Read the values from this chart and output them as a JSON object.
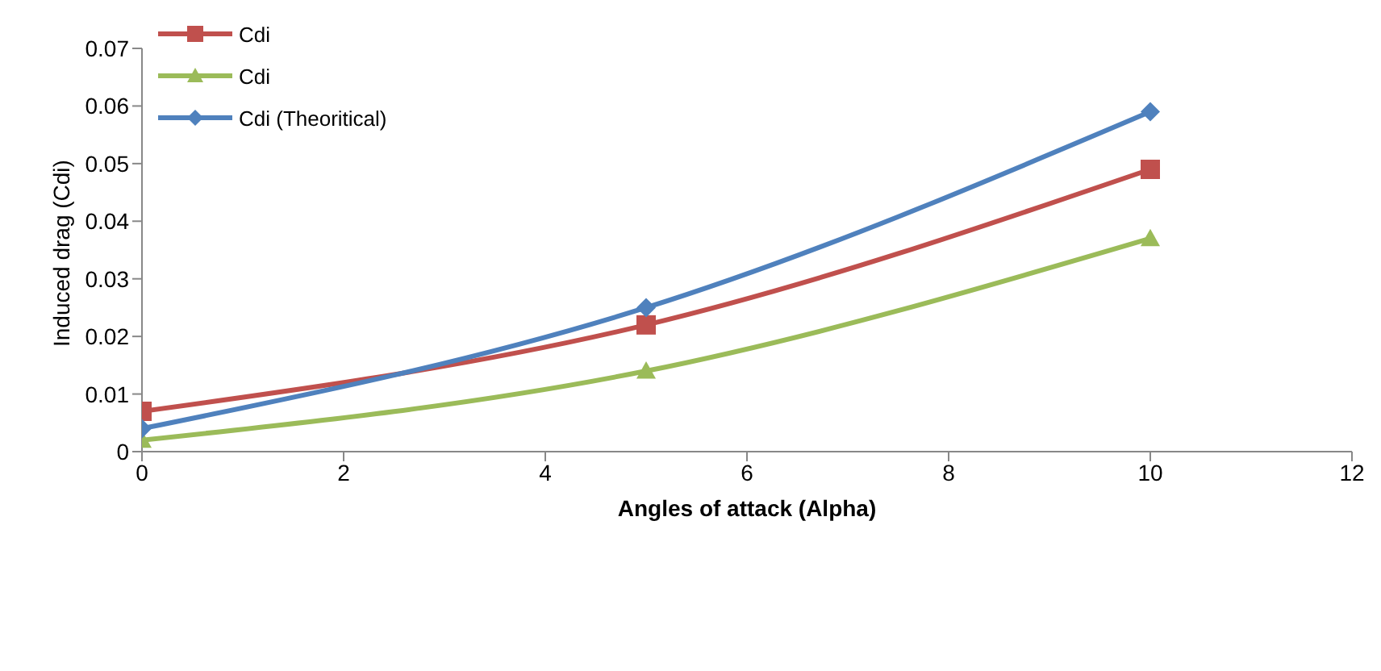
{
  "chart_data": {
    "type": "line",
    "xlabel": "Angles of attack (Alpha)",
    "ylabel": "Induced drag (Cdi)",
    "x": [
      0,
      5,
      10
    ],
    "xlim": [
      0,
      12
    ],
    "xticks": [
      0,
      2,
      4,
      6,
      8,
      10,
      12
    ],
    "ylim": [
      0,
      0.07
    ],
    "yticks": [
      0,
      0.01,
      0.02,
      0.03,
      0.04,
      0.05,
      0.06,
      0.07
    ],
    "grid": false,
    "legend": "top left",
    "series": [
      {
        "name": "Cdi",
        "color": "#c0504d",
        "marker": "square",
        "values": [
          0.007,
          0.022,
          0.049
        ]
      },
      {
        "name": "Cdi",
        "color": "#9bbb59",
        "marker": "triangle",
        "values": [
          0.002,
          0.014,
          0.037
        ]
      },
      {
        "name": "Cdi (Theoritical)",
        "color": "#4f81bd",
        "marker": "diamond",
        "values": [
          0.004,
          0.025,
          0.059
        ]
      }
    ]
  }
}
